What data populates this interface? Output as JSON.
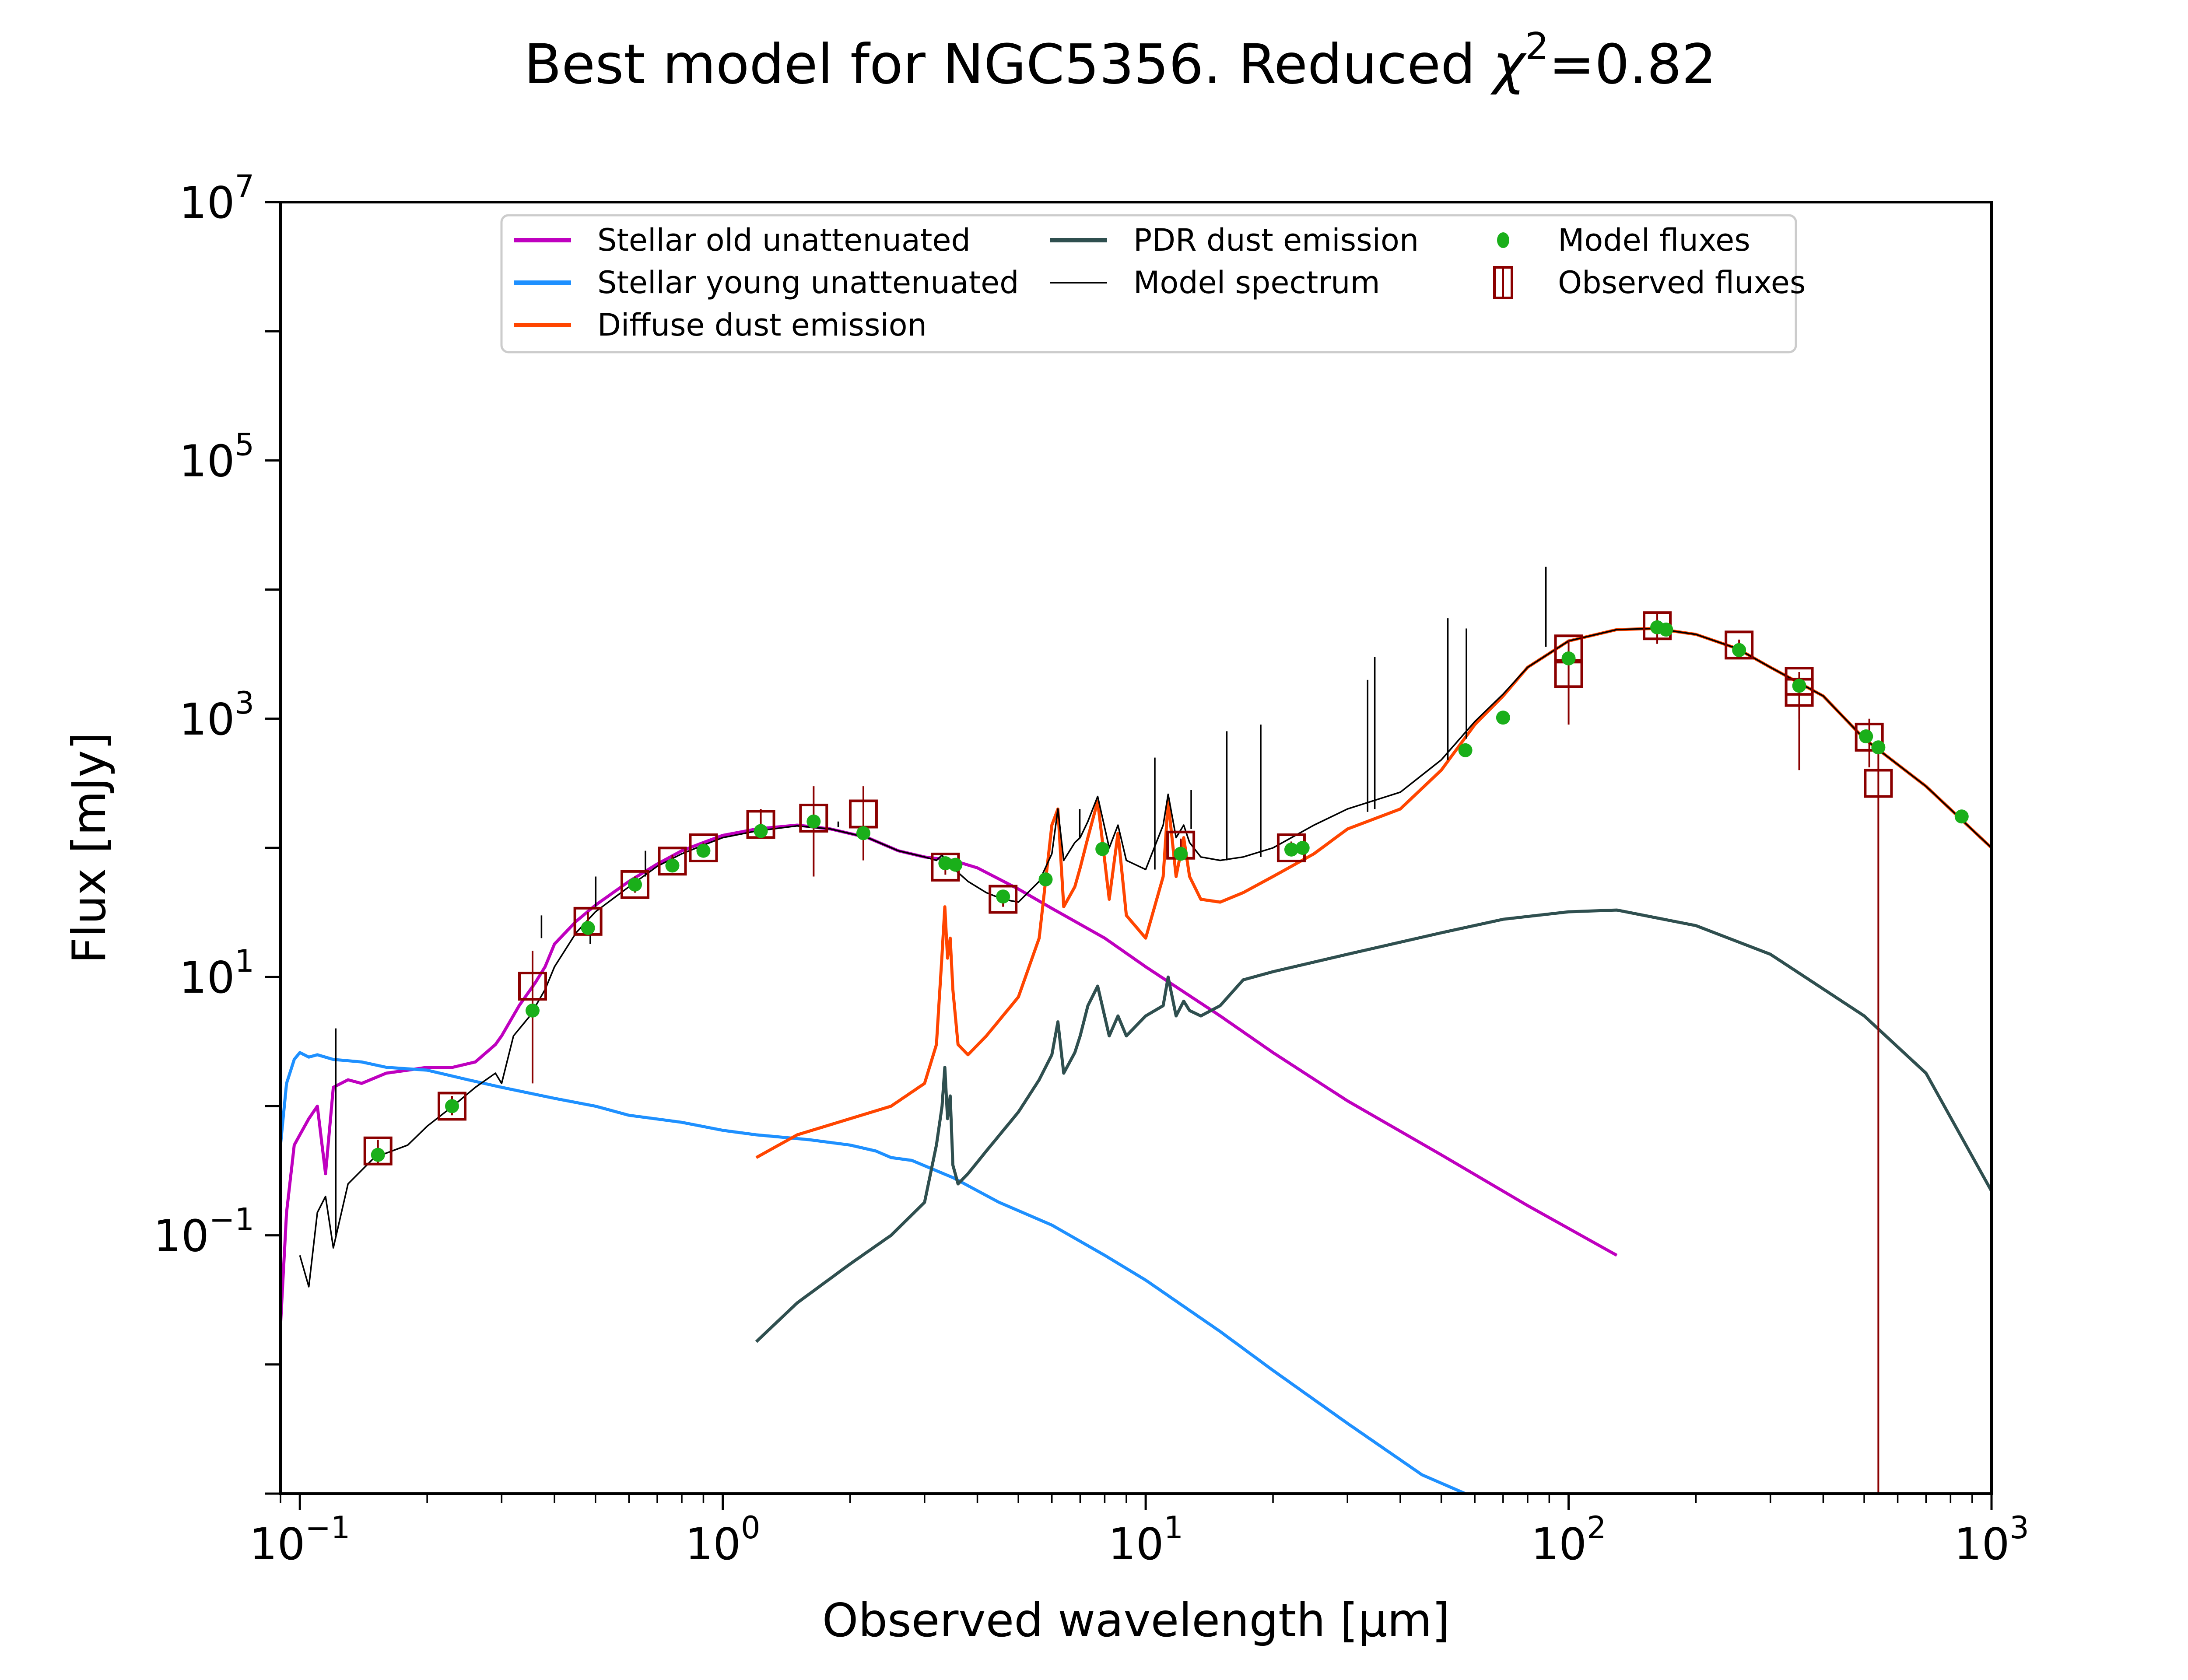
{
  "chart_data": {
    "type": "line",
    "title": "Best model for NGC5356. Reduced χ²=0.82",
    "title_parts": {
      "prefix": "Best model for NGC5356. Reduced ",
      "chi": "χ",
      "sup": "2",
      "suffix": "=0.82"
    },
    "xlabel": "Observed wavelength [μm]",
    "ylabel": "Flux [mJy]",
    "xscale": "log",
    "yscale": "log",
    "xlim": [
      0.09,
      1000
    ],
    "ylim": [
      0.001,
      10000000
    ],
    "grid": false,
    "legend_position": "top-center",
    "x_ticks": [
      {
        "base": "10",
        "exp": "−1",
        "value": 0.1
      },
      {
        "base": "10",
        "exp": "0",
        "value": 1
      },
      {
        "base": "10",
        "exp": "1",
        "value": 10
      },
      {
        "base": "10",
        "exp": "2",
        "value": 100
      },
      {
        "base": "10",
        "exp": "3",
        "value": 1000
      }
    ],
    "y_ticks": [
      {
        "base": "10",
        "exp": "−1",
        "value": 0.1
      },
      {
        "base": "10",
        "exp": "1",
        "value": 10
      },
      {
        "base": "10",
        "exp": "3",
        "value": 1000
      },
      {
        "base": "10",
        "exp": "5",
        "value": 100000
      },
      {
        "base": "10",
        "exp": "7",
        "value": 10000000
      }
    ],
    "legend": [
      {
        "label": "Stellar old unattenuated",
        "kind": "line",
        "color": "#bf00bf"
      },
      {
        "label": "Stellar young unattenuated",
        "kind": "line",
        "color": "#1e90ff"
      },
      {
        "label": "Diffuse dust emission",
        "kind": "line",
        "color": "#ff4500"
      },
      {
        "label": "PDR dust emission",
        "kind": "line",
        "color": "#2f4f4f"
      },
      {
        "label": "Model spectrum",
        "kind": "thinline",
        "color": "#000000"
      },
      {
        "label": "Model fluxes",
        "kind": "dot",
        "color": "#1aaf1a"
      },
      {
        "label": "Observed fluxes",
        "kind": "square",
        "color": "#8b0000"
      }
    ],
    "series": [
      {
        "name": "Stellar old unattenuated",
        "color": "#bf00bf",
        "x": [
          0.09,
          0.093,
          0.097,
          0.1,
          0.105,
          0.11,
          0.115,
          0.12,
          0.13,
          0.14,
          0.16,
          0.18,
          0.2,
          0.23,
          0.26,
          0.29,
          0.3,
          0.33,
          0.36,
          0.38,
          0.4,
          0.45,
          0.5,
          0.6,
          0.7,
          0.8,
          0.9,
          1.0,
          1.2,
          1.5,
          1.8,
          2.2,
          2.6,
          3.0,
          3.5,
          4.0,
          5.0,
          6.0,
          8.0,
          10,
          15,
          20,
          30,
          50,
          80,
          130
        ],
        "y": [
          0.02,
          0.15,
          0.5,
          0.6,
          0.8,
          1.0,
          0.3,
          1.4,
          1.6,
          1.5,
          1.8,
          1.9,
          2.0,
          2.0,
          2.2,
          3.0,
          3.5,
          6,
          9,
          12,
          18,
          27,
          36,
          55,
          75,
          95,
          110,
          125,
          140,
          150,
          140,
          120,
          95,
          85,
          80,
          70,
          48,
          34,
          20,
          12,
          5.0,
          2.6,
          1.1,
          0.42,
          0.17,
          0.07
        ]
      },
      {
        "name": "Stellar young unattenuated",
        "color": "#1e90ff",
        "x": [
          0.09,
          0.093,
          0.097,
          0.1,
          0.105,
          0.11,
          0.12,
          0.14,
          0.16,
          0.2,
          0.25,
          0.3,
          0.4,
          0.5,
          0.6,
          0.8,
          1.0,
          1.2,
          1.6,
          2.0,
          2.3,
          2.5,
          2.8,
          3.5,
          4.5,
          6,
          8,
          10,
          15,
          20,
          30,
          45,
          57
        ],
        "y": [
          0.5,
          1.5,
          2.3,
          2.6,
          2.4,
          2.5,
          2.3,
          2.2,
          2.0,
          1.9,
          1.6,
          1.4,
          1.15,
          1.0,
          0.85,
          0.75,
          0.65,
          0.6,
          0.55,
          0.5,
          0.45,
          0.4,
          0.38,
          0.28,
          0.18,
          0.12,
          0.07,
          0.045,
          0.018,
          0.009,
          0.0035,
          0.0014,
          0.001
        ]
      },
      {
        "name": "Diffuse dust emission",
        "color": "#ff4500",
        "x": [
          1.2,
          1.5,
          2.0,
          2.5,
          3.0,
          3.2,
          3.3,
          3.35,
          3.4,
          3.45,
          3.5,
          3.6,
          3.8,
          4.2,
          5.0,
          5.6,
          6.0,
          6.2,
          6.4,
          6.8,
          7.0,
          7.3,
          7.7,
          8.2,
          8.6,
          9.0,
          10,
          11.0,
          11.3,
          11.8,
          12.3,
          12.7,
          13.5,
          15,
          17,
          20,
          25,
          30,
          40,
          50,
          60,
          70,
          80,
          100,
          130,
          160,
          200,
          250,
          300,
          400,
          500,
          700,
          1000
        ],
        "y": [
          0.4,
          0.6,
          0.8,
          1.0,
          1.5,
          3,
          15,
          35,
          14,
          20,
          8,
          3,
          2.5,
          3.5,
          7,
          20,
          150,
          200,
          35,
          50,
          70,
          120,
          230,
          40,
          130,
          30,
          20,
          60,
          230,
          60,
          120,
          60,
          40,
          38,
          45,
          60,
          90,
          140,
          200,
          400,
          900,
          1500,
          2500,
          4000,
          4900,
          5000,
          4500,
          3500,
          2500,
          1500,
          700,
          300,
          100
        ]
      },
      {
        "name": "PDR dust emission",
        "color": "#2f4f4f",
        "x": [
          1.2,
          1.5,
          2.0,
          2.5,
          3.0,
          3.2,
          3.3,
          3.35,
          3.4,
          3.45,
          3.5,
          3.6,
          3.8,
          4.2,
          5.0,
          5.6,
          6.0,
          6.2,
          6.4,
          6.8,
          7.0,
          7.3,
          7.7,
          8.2,
          8.6,
          9.0,
          10,
          11.0,
          11.3,
          11.8,
          12.3,
          12.7,
          13.5,
          15,
          17,
          20,
          30,
          50,
          70,
          100,
          130,
          200,
          300,
          500,
          700,
          1000
        ],
        "y": [
          0.015,
          0.03,
          0.06,
          0.1,
          0.18,
          0.5,
          1.0,
          2.0,
          0.8,
          1.2,
          0.35,
          0.25,
          0.3,
          0.45,
          0.9,
          1.6,
          2.5,
          4.5,
          1.8,
          2.6,
          3.5,
          6.0,
          8.5,
          3.5,
          5.0,
          3.5,
          5.0,
          6.0,
          10.0,
          5.0,
          6.5,
          5.5,
          5.0,
          6.0,
          9.5,
          11,
          15,
          22,
          28,
          32,
          33,
          25,
          15,
          5.0,
          1.8,
          0.22
        ]
      },
      {
        "name": "Model spectrum",
        "color": "#000000",
        "x": [
          0.1,
          0.105,
          0.11,
          0.115,
          0.12,
          0.13,
          0.15,
          0.18,
          0.2,
          0.23,
          0.26,
          0.29,
          0.3,
          0.32,
          0.35,
          0.38,
          0.4,
          0.45,
          0.5,
          0.6,
          0.7,
          0.8,
          0.9,
          1.0,
          1.2,
          1.5,
          1.8,
          2.2,
          2.6,
          3.0,
          3.2,
          3.3,
          3.4,
          3.5,
          3.8,
          4.2,
          4.6,
          5.0,
          5.6,
          6.0,
          6.2,
          6.4,
          6.8,
          7.0,
          7.3,
          7.7,
          8.2,
          8.6,
          9.0,
          10,
          11.0,
          11.3,
          11.8,
          12.3,
          12.7,
          13.5,
          15,
          17,
          20,
          25,
          30,
          40,
          50,
          60,
          70,
          80,
          100,
          130,
          160,
          200,
          250,
          300,
          400,
          500,
          700,
          1000
        ],
        "y": [
          0.07,
          0.04,
          0.15,
          0.2,
          0.08,
          0.25,
          0.4,
          0.5,
          0.7,
          1.0,
          1.4,
          1.8,
          1.5,
          3.5,
          5.0,
          8.0,
          12,
          22,
          32,
          50,
          72,
          90,
          105,
          120,
          135,
          148,
          140,
          120,
          95,
          85,
          80,
          88,
          75,
          70,
          55,
          45,
          40,
          38,
          55,
          90,
          200,
          80,
          110,
          120,
          160,
          250,
          100,
          150,
          80,
          68,
          150,
          260,
          120,
          150,
          110,
          85,
          80,
          85,
          100,
          150,
          200,
          270,
          480,
          950,
          1550,
          2500,
          4000,
          4900,
          5000,
          4500,
          3500,
          2500,
          1500,
          700,
          300,
          100
        ]
      },
      {
        "name": "Model spectrum emission lines",
        "color": "#000000",
        "kind": "vlines",
        "x": [
          0.1216,
          0.3727,
          0.4861,
          0.5007,
          0.6563,
          1.875,
          6.985,
          10.51,
          12.81,
          15.55,
          18.71,
          33.48,
          34.81,
          51.81,
          57.32,
          88.36
        ],
        "y": [
          4.0,
          30,
          18,
          60,
          95,
          160,
          200,
          500,
          280,
          800,
          900,
          2000,
          3000,
          6000,
          5000,
          15000
        ],
        "y_base": [
          0.1,
          20,
          25,
          35,
          60,
          145,
          120,
          68,
          140,
          80,
          85,
          190,
          200,
          480,
          700,
          3600
        ]
      }
    ],
    "model_fluxes": {
      "color": "#1aaf1a",
      "x": [
        0.153,
        0.229,
        0.355,
        0.48,
        0.62,
        0.76,
        0.9,
        1.23,
        1.64,
        2.15,
        3.36,
        3.55,
        4.6,
        5.8,
        7.9,
        12.1,
        22.1,
        23.5,
        57,
        70,
        100,
        162,
        170,
        253,
        351,
        505,
        540,
        850
      ],
      "y": [
        0.42,
        1.0,
        5.5,
        24,
        52,
        73,
        95,
        135,
        160,
        130,
        76,
        74,
        42,
        57,
        98,
        90,
        97,
        100,
        570,
        1020,
        2930,
        5100,
        4900,
        3400,
        1800,
        730,
        600,
        175
      ]
    },
    "observed_fluxes": {
      "color": "#8b0000",
      "x": [
        0.153,
        0.229,
        0.355,
        0.48,
        0.62,
        0.76,
        0.9,
        1.23,
        1.64,
        2.15,
        3.36,
        4.6,
        12.1,
        22.1,
        100,
        100,
        162,
        253,
        351,
        351,
        514,
        540
      ],
      "y": [
        0.45,
        1.0,
        8.5,
        27,
        52,
        79,
        100,
        152,
        170,
        183,
        71,
        40,
        105,
        100,
        3470,
        2240,
        5250,
        3720,
        1950,
        1600,
        720,
        316
      ],
      "err_lo": [
        0.35,
        0.85,
        1.5,
        22,
        45,
        70,
        90,
        120,
        60,
        80,
        62,
        35,
        95,
        90,
        1800,
        900,
        3800,
        3300,
        400,
        1000,
        420,
        0.001
      ],
      "err_hi": [
        0.55,
        1.2,
        16,
        32,
        60,
        88,
        110,
        200,
        300,
        300,
        80,
        46,
        118,
        112,
        4100,
        3000,
        6500,
        4100,
        2300,
        2200,
        1000,
        630
      ]
    }
  }
}
